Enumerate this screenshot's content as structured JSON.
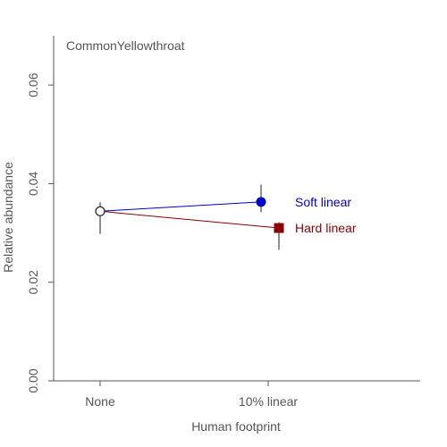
{
  "chart_data": {
    "type": "line",
    "title": "CommonYellowthroat",
    "xlabel": "Human footprint",
    "ylabel": "Relative abundance",
    "categories": [
      "None",
      "10% linear"
    ],
    "ylim": [
      0,
      0.07
    ],
    "yticks": [
      0.0,
      0.02,
      0.04,
      0.06
    ],
    "ytick_labels": [
      "0.00",
      "0.02",
      "0.04",
      "0.06"
    ],
    "grid": false,
    "baseline": {
      "value": 0.0344,
      "lower": 0.0298,
      "upper": 0.0362
    },
    "series": [
      {
        "name": "Soft linear",
        "color": "#0000cc",
        "marker": "circle",
        "values": [
          0.0344,
          0.0363
        ],
        "lower": [
          0.0298,
          0.0342
        ],
        "upper": [
          0.0362,
          0.0398
        ]
      },
      {
        "name": "Hard linear",
        "color": "#8b0000",
        "marker": "square",
        "values": [
          0.0344,
          0.031
        ],
        "lower": [
          0.0298,
          0.0266
        ],
        "upper": [
          0.0362,
          0.0322
        ]
      }
    ]
  }
}
